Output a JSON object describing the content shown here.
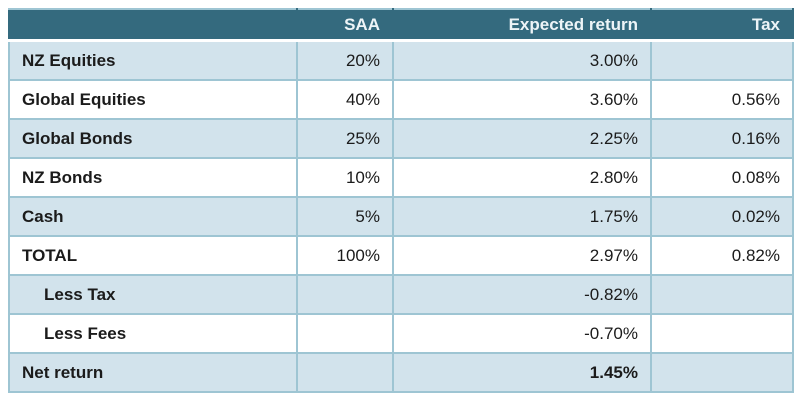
{
  "colors": {
    "header_bg": "#346a7e",
    "header_text": "#edf4f7",
    "band_row_bg": "#d2e3ec",
    "white_row_bg": "#ffffff",
    "border": "#9ec5d3",
    "body_text": "#1b1b1b"
  },
  "chart_data": {
    "type": "table",
    "title": "",
    "columns": [
      "",
      "SAA",
      "Expected return",
      "Tax"
    ],
    "rows": [
      {
        "label": "NZ Equities",
        "saa": "20%",
        "expected_return": "3.00%",
        "tax": ""
      },
      {
        "label": "Global Equities",
        "saa": "40%",
        "expected_return": "3.60%",
        "tax": "0.56%"
      },
      {
        "label": "Global Bonds",
        "saa": "25%",
        "expected_return": "2.25%",
        "tax": "0.16%"
      },
      {
        "label": "NZ Bonds",
        "saa": "10%",
        "expected_return": "2.80%",
        "tax": "0.08%"
      },
      {
        "label": "Cash",
        "saa": "5%",
        "expected_return": "1.75%",
        "tax": "0.02%"
      },
      {
        "label": "TOTAL",
        "saa": "100%",
        "expected_return": "2.97%",
        "tax": "0.82%"
      },
      {
        "label": "Less Tax",
        "saa": "",
        "expected_return": "-0.82%",
        "tax": ""
      },
      {
        "label": "Less Fees",
        "saa": "",
        "expected_return": "-0.70%",
        "tax": ""
      },
      {
        "label": "Net return",
        "saa": "",
        "expected_return": "1.45%",
        "tax": ""
      }
    ]
  }
}
